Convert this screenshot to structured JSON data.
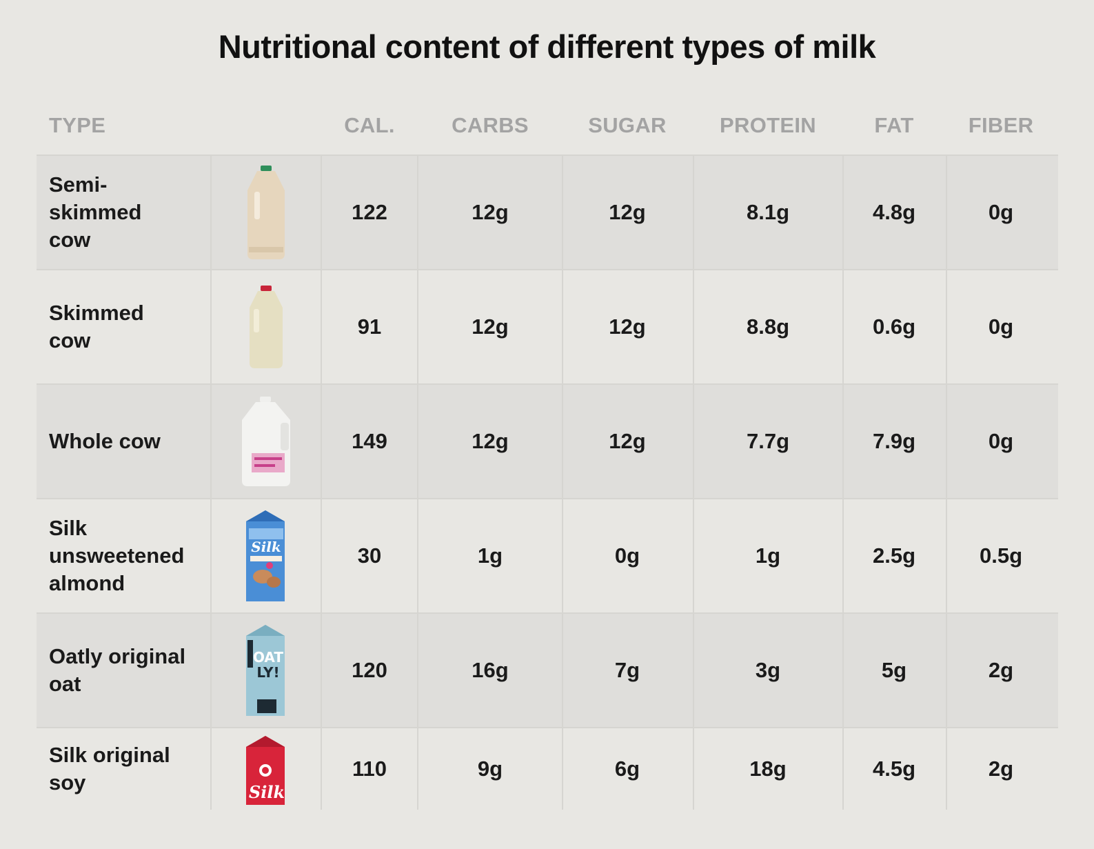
{
  "title": "Nutritional content of different types of milk",
  "columns": [
    "TYPE",
    "CAL.",
    "CARBS",
    "SUGAR",
    "PROTEIN",
    "FAT",
    "FIBER"
  ],
  "rows": [
    {
      "type": "Semi-\nskimmed\ncow",
      "image": "milk-jug-green-cap-icon",
      "cal": "122",
      "carbs": "12g",
      "sugar": "12g",
      "protein": "8.1g",
      "fat": "4.8g",
      "fiber": "0g"
    },
    {
      "type": "Skimmed\ncow",
      "image": "milk-jug-red-cap-icon",
      "cal": "91",
      "carbs": "12g",
      "sugar": "12g",
      "protein": "8.8g",
      "fat": "0.6g",
      "fiber": "0g"
    },
    {
      "type": "Whole cow",
      "image": "milk-gallon-icon",
      "cal": "149",
      "carbs": "12g",
      "sugar": "12g",
      "protein": "7.7g",
      "fat": "7.9g",
      "fiber": "0g"
    },
    {
      "type": "Silk\nunsweetened\nalmond",
      "image": "silk-almond-carton-icon",
      "cal": "30",
      "carbs": "1g",
      "sugar": "0g",
      "protein": "1g",
      "fat": "2.5g",
      "fiber": "0.5g"
    },
    {
      "type": "Oatly original\noat",
      "image": "oatly-carton-icon",
      "cal": "120",
      "carbs": "16g",
      "sugar": "7g",
      "protein": "3g",
      "fat": "5g",
      "fiber": "2g"
    },
    {
      "type": "Silk original\nsoy",
      "image": "silk-soy-carton-icon",
      "cal": "110",
      "carbs": "9g",
      "sugar": "6g",
      "protein": "18g",
      "fat": "4.5g",
      "fiber": "2g"
    }
  ],
  "chart_data": {
    "type": "table",
    "title": "Nutritional content of different types of milk",
    "columns": [
      "TYPE",
      "CAL.",
      "CARBS",
      "SUGAR",
      "PROTEIN",
      "FAT",
      "FIBER"
    ],
    "rows": [
      [
        "Semi-skimmed cow",
        "122",
        "12g",
        "12g",
        "8.1g",
        "4.8g",
        "0g"
      ],
      [
        "Skimmed cow",
        "91",
        "12g",
        "12g",
        "8.8g",
        "0.6g",
        "0g"
      ],
      [
        "Whole cow",
        "149",
        "12g",
        "12g",
        "7.7g",
        "7.9g",
        "0g"
      ],
      [
        "Silk unsweetened almond",
        "30",
        "1g",
        "0g",
        "1g",
        "2.5g",
        "0.5g"
      ],
      [
        "Oatly original oat",
        "120",
        "16g",
        "7g",
        "3g",
        "5g",
        "2g"
      ],
      [
        "Silk original soy",
        "110",
        "9g",
        "6g",
        "18g",
        "4.5g",
        "2g"
      ]
    ]
  },
  "colors": {
    "background": "#e8e7e3",
    "row_shade": "#dfdedb",
    "header_text": "#a3a3a3",
    "body_text": "#1a1a1a"
  }
}
